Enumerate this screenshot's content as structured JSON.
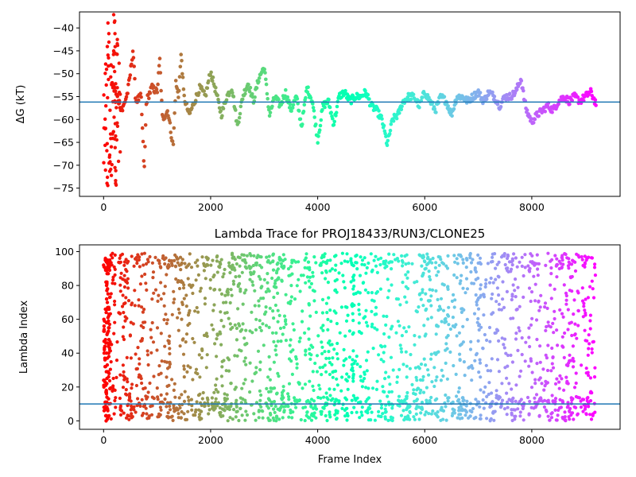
{
  "chart_data": [
    {
      "type": "scatter",
      "title": "",
      "xlabel": "",
      "ylabel": "ΔG (kT)",
      "xlim": [
        -450,
        9650
      ],
      "ylim": [
        -76.8,
        -36.5
      ],
      "xticks": [
        0,
        2000,
        4000,
        6000,
        8000
      ],
      "yticks": [
        -40,
        -45,
        -50,
        -55,
        -60,
        -65,
        -70,
        -75
      ],
      "xtick_labels": [
        "0",
        "2000",
        "4000",
        "6000",
        "8000"
      ],
      "ytick_labels": [
        "−40",
        "−45",
        "−50",
        "−55",
        "−60",
        "−65",
        "−70",
        "−75"
      ],
      "colormap": "rainbow (red at frame 0 → purple at last frame)",
      "hline": {
        "y": -56.2,
        "color": "#1f77b4"
      },
      "grid": false,
      "trace_keypoints": {
        "x": [
          150,
          250,
          350,
          450,
          500,
          550,
          600,
          700,
          760,
          800,
          900,
          1000,
          1050,
          1100,
          1200,
          1300,
          1350,
          1400,
          1450,
          1500,
          1600,
          1700,
          1800,
          1900,
          2000,
          2100,
          2200,
          2300,
          2400,
          2500,
          2600,
          2700,
          2800,
          2900,
          3000,
          3100,
          3200,
          3300,
          3400,
          3500,
          3600,
          3700,
          3800,
          3900,
          4000,
          4100,
          4200,
          4300,
          4400,
          4500,
          4600,
          4700,
          4800,
          4900,
          5000,
          5100,
          5200,
          5300,
          5400,
          5500,
          5600,
          5700,
          5800,
          5900,
          6000,
          6100,
          6200,
          6300,
          6400,
          6500,
          6600,
          6700,
          6800,
          6900,
          7000,
          7100,
          7200,
          7300,
          7400,
          7500,
          7600,
          7700,
          7800,
          7850,
          7900,
          8000,
          8100,
          8200,
          8300,
          8400,
          8500,
          8600,
          8700,
          8800,
          8900,
          9000,
          9100,
          9200
        ],
        "y": [
          -52,
          -55,
          -58,
          -54,
          -50,
          -44.5,
          -56,
          -55,
          -71.5,
          -56,
          -53,
          -54,
          -47,
          -60,
          -58,
          -66,
          -52,
          -55,
          -45.5,
          -55,
          -59,
          -56,
          -53,
          -55,
          -49.5,
          -54,
          -59,
          -55,
          -53,
          -61.5,
          -55,
          -52,
          -56,
          -51,
          -48.5,
          -59,
          -55,
          -57,
          -54,
          -58,
          -55,
          -61.5,
          -53,
          -56,
          -64.5,
          -57,
          -56,
          -61,
          -55,
          -54,
          -56,
          -55,
          -55,
          -54,
          -57,
          -58,
          -60,
          -65.5,
          -60,
          -59,
          -56,
          -55,
          -55,
          -57,
          -54,
          -56,
          -58,
          -55,
          -56,
          -59,
          -55,
          -55,
          -56,
          -55,
          -54,
          -56,
          -54,
          -55,
          -57,
          -55,
          -55,
          -54,
          -51,
          -55,
          -58,
          -60.5,
          -59,
          -58,
          -57,
          -58,
          -56,
          -55,
          -56,
          -55,
          -56,
          -55,
          -54,
          -56.5
        ]
      }
    },
    {
      "type": "scatter",
      "title": "Lambda Trace for PROJ18433/RUN3/CLONE25",
      "xlabel": "Frame Index",
      "ylabel": "Lambda Index",
      "xlim": [
        -450,
        9650
      ],
      "ylim": [
        -5,
        104
      ],
      "xticks": [
        0,
        2000,
        4000,
        6000,
        8000
      ],
      "yticks": [
        0,
        20,
        40,
        60,
        80,
        100
      ],
      "xtick_labels": [
        "0",
        "2000",
        "4000",
        "6000",
        "8000"
      ],
      "ytick_labels": [
        "0",
        "20",
        "40",
        "60",
        "80",
        "100"
      ],
      "colormap": "rainbow (red at frame 0 → purple at last frame)",
      "hline": {
        "y": 10,
        "color": "#1f77b4"
      },
      "grid": false,
      "frames": [
        0,
        9200
      ],
      "lambda_range": [
        0,
        99
      ]
    }
  ]
}
